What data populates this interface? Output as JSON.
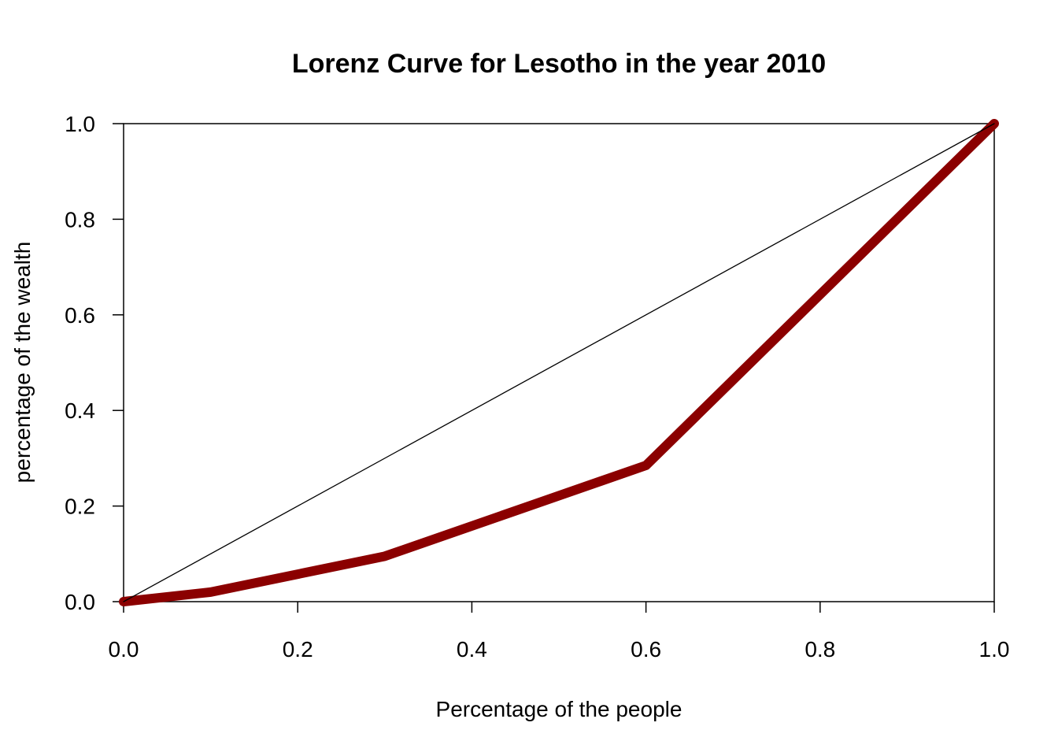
{
  "chart_data": {
    "type": "line",
    "title": "Lorenz Curve for Lesotho in the year 2010",
    "xlabel": "Percentage of the people",
    "ylabel": "percentage of the wealth",
    "xlim": [
      0,
      1
    ],
    "ylim": [
      0,
      1
    ],
    "x_ticks": [
      "0.0",
      "0.2",
      "0.4",
      "0.6",
      "0.8",
      "1.0"
    ],
    "y_ticks": [
      "0.0",
      "0.2",
      "0.4",
      "0.6",
      "0.8",
      "1.0"
    ],
    "grid": false,
    "legend": "none",
    "series": [
      {
        "x": [
          0,
          0.1,
          0.3,
          0.6,
          1.0
        ],
        "y": [
          0,
          0.02,
          0.095,
          0.285,
          1.0
        ],
        "color": "#8b0000"
      },
      {
        "x": [
          0,
          1
        ],
        "y": [
          0,
          1
        ],
        "color": "#000000"
      }
    ]
  }
}
